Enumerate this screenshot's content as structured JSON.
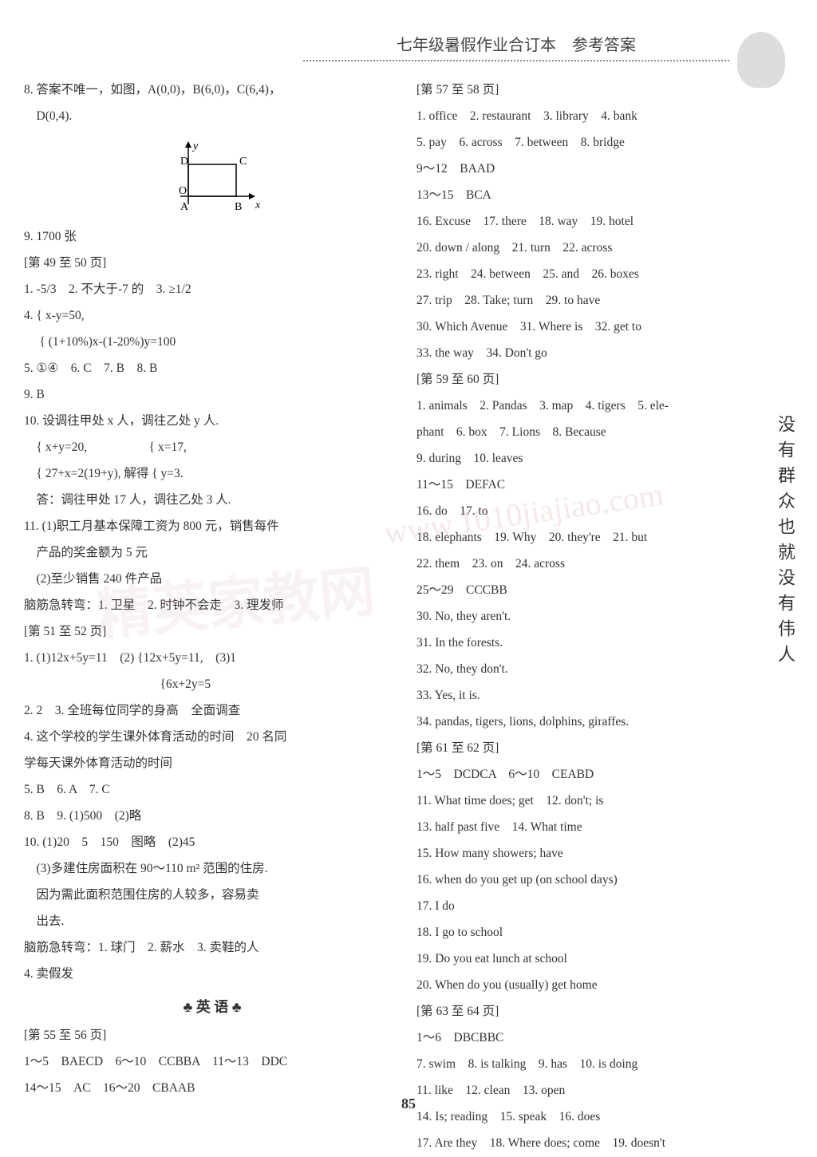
{
  "header": "七年级暑假作业合订本　参考答案",
  "vertical_quote": "没有群众也就没有伟人",
  "page_number": "85",
  "watermark1": "www.1010jiajiao.com",
  "watermark2": "精英家教网",
  "english_section_title": "♣ 英 语 ♣",
  "diagram": {
    "labels": {
      "D": "D",
      "C": "C",
      "O": "O",
      "A": "A",
      "B": "B",
      "y": "y",
      "x": "x"
    }
  },
  "left": [
    "8. 答案不唯一，如图，A(0,0)，B(6,0)，C(6,4)，",
    "　D(0,4).",
    "DIAGRAM",
    "9. 1700 张",
    "[第 49 至 50 页]",
    "1. -5/3　2. 不大于-7 的　3. ≥1/2",
    "4. { x-y=50,",
    "　 { (1+10%)x-(1-20%)y=100",
    "5. ①④　6. C　7. B　8. B",
    "9. B",
    "10. 设调往甲处 x 人，调往乙处 y 人.",
    "　{ x+y=20,　　　　　{ x=17,",
    "　{ 27+x=2(19+y), 解得 { y=3.",
    "　答：调往甲处 17 人，调往乙处 3 人.",
    "11. (1)职工月基本保障工资为 800 元，销售每件",
    "　产品的奖金额为 5 元",
    "　(2)至少销售 240 件产品",
    "脑筋急转弯：1. 卫星　2. 时钟不会走　3. 理发师",
    "[第 51 至 52 页]",
    "1. (1)12x+5y=11　(2) {12x+5y=11,　(3)1",
    "　　　　　　　　　　　{6x+2y=5",
    "2. 2　3. 全班每位同学的身高　全面调查",
    "4. 这个学校的学生课外体育活动的时间　20 名同",
    "学每天课外体育活动的时间",
    "5. B　6. A　7. C",
    "8. B　9. (1)500　(2)略",
    "10. (1)20　5　150　图略　(2)45",
    "　(3)多建住房面积在 90～110 m² 范围的住房.",
    "　因为需此面积范围住房的人较多，容易卖",
    "　出去.",
    "脑筋急转弯：1. 球门　2. 薪水　3. 卖鞋的人",
    "4. 卖假发",
    "SECTION_ENGLISH",
    "[第 55 至 56 页]",
    "1～5　BAECD　6～10　CCBBA　11～13　DDC",
    "14～15　AC　16～20　CBAAB"
  ],
  "right": [
    "[第 57 至 58 页]",
    "1. office　2. restaurant　3. library　4. bank",
    "5. pay　6. across　7. between　8. bridge",
    "9～12　BAAD",
    "13～15　BCA",
    "16. Excuse　17. there　18. way　19. hotel",
    "20. down / along　21. turn　22. across",
    "23. right　24. between　25. and　26. boxes",
    "27. trip　28. Take; turn　29. to have",
    "30. Which Avenue　31. Where is　32. get to",
    "33. the way　34. Don't go",
    "[第 59 至 60 页]",
    "1. animals　2. Pandas　3. map　4. tigers　5. ele-",
    "phant　6. box　7. Lions　8. Because",
    "9. during　10. leaves",
    "11～15　DEFAC",
    "16. do　17. to",
    "18. elephants　19. Why　20. they're　21. but",
    "22. them　23. on　24. across",
    "25～29　CCCBB",
    "30. No, they aren't.",
    "31. In the forests.",
    "32. No, they don't.",
    "33. Yes, it is.",
    "34. pandas, tigers, lions, dolphins, giraffes.",
    "[第 61 至 62 页]",
    "1～5　DCDCA　6～10　CEABD",
    "11. What time does; get　12. don't; is",
    "13. half past five　14. What time",
    "15. How many showers; have",
    "16. when do you get up (on school days)",
    "17. I do",
    "18. I go to school",
    "19. Do you eat lunch at school",
    "20. When do you (usually) get home",
    "[第 63 至 64 页]",
    "1～6　DBCBBC",
    "7. swim　8. is talking　9. has　10. is doing",
    "11. like　12. clean　13. open",
    "14. Is; reading　15. speak　16. does",
    "17. Are they　18. Where does; come　19. doesn't"
  ]
}
